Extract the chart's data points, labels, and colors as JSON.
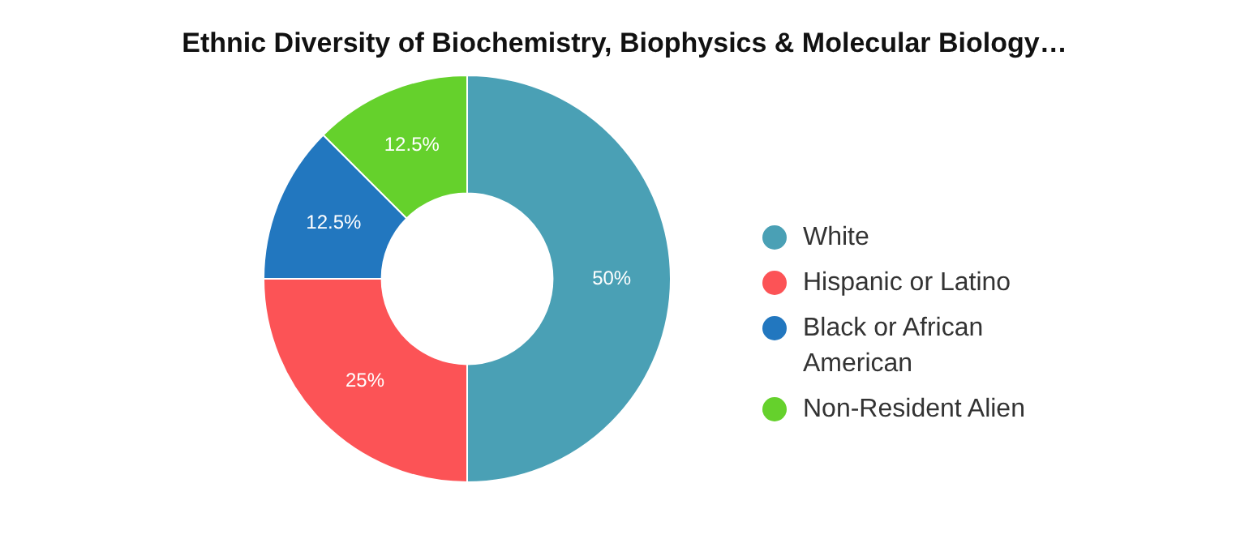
{
  "chart_data": {
    "type": "donut",
    "title": "Ethnic Diversity of Biochemistry, Biophysics & Molecular Biology…",
    "categories": [
      "White",
      "Hispanic or Latino",
      "Black or African American",
      "Non-Resident Alien"
    ],
    "values": [
      50,
      25,
      12.5,
      12.5
    ],
    "colors": [
      "#4aa0b5",
      "#fc5356",
      "#2277bf",
      "#65d12c"
    ],
    "value_labels": [
      "50%",
      "25%",
      "12.5%",
      "12.5%"
    ],
    "legend": "right"
  }
}
